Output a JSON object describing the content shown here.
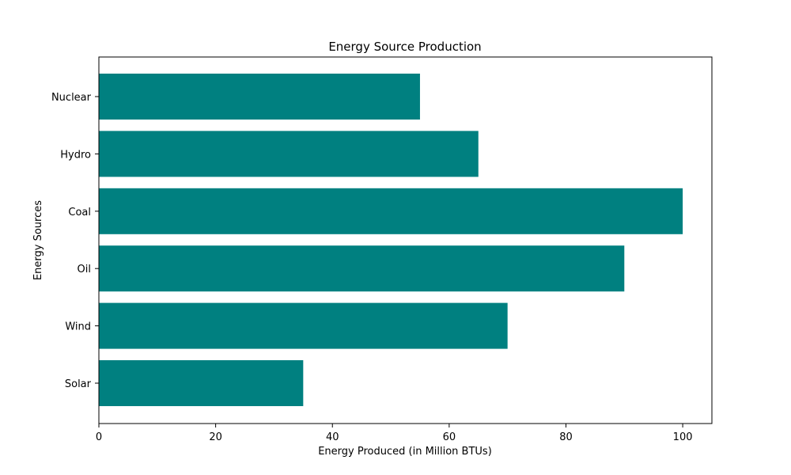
{
  "chart_data": {
    "type": "bar",
    "orientation": "horizontal",
    "title": "Energy Source Production",
    "xlabel": "Energy Produced (in Million BTUs)",
    "ylabel": "Energy Sources",
    "categories": [
      "Solar",
      "Wind",
      "Oil",
      "Coal",
      "Hydro",
      "Nuclear"
    ],
    "values": [
      35,
      70,
      90,
      100,
      65,
      55
    ],
    "xlim": [
      0,
      105
    ],
    "xticks": [
      0,
      20,
      40,
      60,
      80,
      100
    ],
    "grid": false,
    "legend": "none",
    "bar_color": "#008080"
  }
}
